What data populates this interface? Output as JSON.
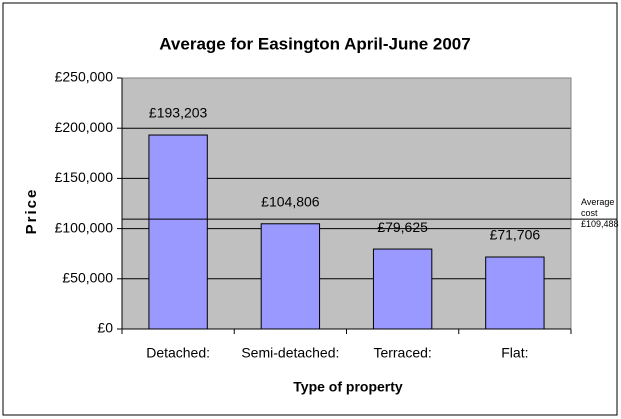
{
  "chart_data": {
    "type": "bar",
    "title": "Average for Easington April-June 2007",
    "x_label": "Type of property",
    "y_label": "Price",
    "categories": [
      "Detached:",
      "Semi-detached:",
      "Terraced:",
      "Flat:"
    ],
    "values": [
      193203,
      104806,
      79625,
      71706
    ],
    "value_labels": [
      "£193,203",
      "£104,806",
      "£79,625",
      "£71,706"
    ],
    "color": "#9999ff",
    "ylim": [
      0,
      250000
    ],
    "yticks": [
      {
        "value": 0,
        "label": "£0"
      },
      {
        "value": 50000,
        "label": "£50,000"
      },
      {
        "value": 100000,
        "label": "£100,000"
      },
      {
        "value": 150000,
        "label": "£150,000"
      },
      {
        "value": 200000,
        "label": "£200,000"
      },
      {
        "value": 250000,
        "label": "£250,000"
      }
    ],
    "grid": true,
    "reference_line": {
      "value": 109488,
      "label": "Average cost £109,488"
    }
  }
}
